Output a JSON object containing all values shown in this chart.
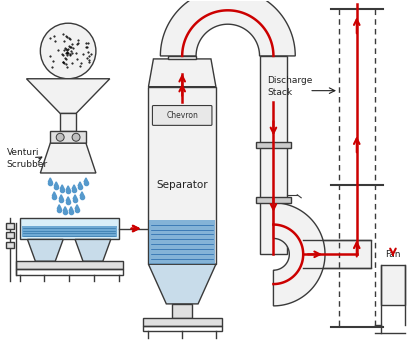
{
  "bg_color": "#ffffff",
  "labels": {
    "venturi_scrubber": "Venturi\nScrubber",
    "separator": "Separator",
    "chevron": "Chevron",
    "discharge_stack": "Discharge\nStack",
    "fan": "Fan"
  },
  "arrow_color": "#cc0000",
  "line_color": "#3a3a3a",
  "water_color": "#5599cc",
  "blue_fill": "#5599cc",
  "light_fill": "#f2f2f2",
  "gray_fill": "#e0e0e0"
}
